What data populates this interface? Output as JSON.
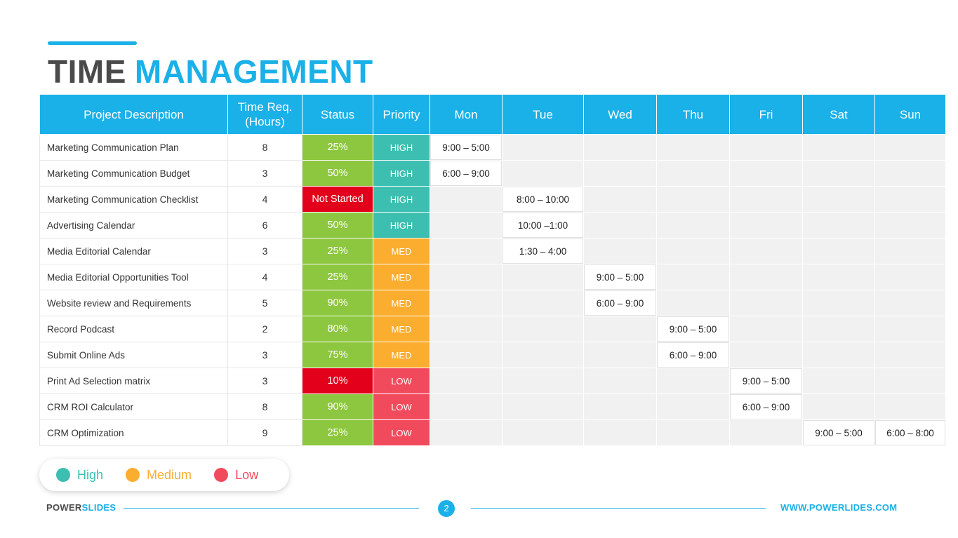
{
  "colors": {
    "accent": "#1ab0e8",
    "status_green": "#8dc63f",
    "status_red": "#e2001a",
    "priority_high": "#3cbfb0",
    "priority_med": "#fbad2f",
    "priority_low": "#f24a5d",
    "legend_high": "#3cbfb0",
    "legend_medium": "#fbad2f",
    "legend_low": "#f24a5d"
  },
  "title": {
    "word1": "TIME",
    "word2": "MANAGEMENT"
  },
  "table": {
    "headers": [
      "Project Description",
      "Time Req.\n(Hours)",
      "Status",
      "Priority",
      "Mon",
      "Tue",
      "Wed",
      "Thu",
      "Fri",
      "Sat",
      "Sun"
    ],
    "rows": [
      {
        "desc": "Marketing Communication Plan",
        "hours": "8",
        "status": "25%",
        "status_color": "green",
        "priority": "HIGH",
        "priority_level": "high",
        "days": [
          "9:00 – 5:00",
          "",
          "",
          "",
          "",
          "",
          ""
        ]
      },
      {
        "desc": "Marketing Communication Budget",
        "hours": "3",
        "status": "50%",
        "status_color": "green",
        "priority": "HIGH",
        "priority_level": "high",
        "days": [
          "6:00 – 9:00",
          "",
          "",
          "",
          "",
          "",
          ""
        ]
      },
      {
        "desc": "Marketing Communication Checklist",
        "hours": "4",
        "status": "Not Started",
        "status_color": "red",
        "priority": "HIGH",
        "priority_level": "high",
        "days": [
          "",
          "8:00 – 10:00",
          "",
          "",
          "",
          "",
          ""
        ]
      },
      {
        "desc": "Advertising Calendar",
        "hours": "6",
        "status": "50%",
        "status_color": "green",
        "priority": "HIGH",
        "priority_level": "high",
        "days": [
          "",
          "10:00 –1:00",
          "",
          "",
          "",
          "",
          ""
        ]
      },
      {
        "desc": "Media Editorial Calendar",
        "hours": "3",
        "status": "25%",
        "status_color": "green",
        "priority": "MED",
        "priority_level": "med",
        "days": [
          "",
          "1:30 – 4:00",
          "",
          "",
          "",
          "",
          ""
        ]
      },
      {
        "desc": "Media Editorial Opportunities Tool",
        "hours": "4",
        "status": "25%",
        "status_color": "green",
        "priority": "MED",
        "priority_level": "med",
        "days": [
          "",
          "",
          "9:00 – 5:00",
          "",
          "",
          "",
          ""
        ]
      },
      {
        "desc": "Website review and Requirements",
        "hours": "5",
        "status": "90%",
        "status_color": "green",
        "priority": "MED",
        "priority_level": "med",
        "days": [
          "",
          "",
          "6:00 – 9:00",
          "",
          "",
          "",
          ""
        ]
      },
      {
        "desc": "Record Podcast",
        "hours": "2",
        "status": "80%",
        "status_color": "green",
        "priority": "MED",
        "priority_level": "med",
        "days": [
          "",
          "",
          "",
          "9:00 – 5:00",
          "",
          "",
          ""
        ]
      },
      {
        "desc": "Submit Online Ads",
        "hours": "3",
        "status": "75%",
        "status_color": "green",
        "priority": "MED",
        "priority_level": "med",
        "days": [
          "",
          "",
          "",
          "6:00 – 9:00",
          "",
          "",
          ""
        ]
      },
      {
        "desc": "Print Ad Selection matrix",
        "hours": "3",
        "status": "10%",
        "status_color": "red",
        "priority": "LOW",
        "priority_level": "low",
        "days": [
          "",
          "",
          "",
          "",
          "9:00 – 5:00",
          "",
          ""
        ]
      },
      {
        "desc": "CRM ROI Calculator",
        "hours": "8",
        "status": "90%",
        "status_color": "green",
        "priority": "LOW",
        "priority_level": "low",
        "days": [
          "",
          "",
          "",
          "",
          "6:00 – 9:00",
          "",
          ""
        ]
      },
      {
        "desc": "CRM Optimization",
        "hours": "9",
        "status": "25%",
        "status_color": "green",
        "priority": "LOW",
        "priority_level": "low",
        "days": [
          "",
          "",
          "",
          "",
          "",
          "9:00 – 5:00",
          "6:00 – 8:00"
        ]
      }
    ]
  },
  "legend": {
    "items": [
      {
        "label": "High",
        "color": "#3cbfb0"
      },
      {
        "label": "Medium",
        "color": "#fbad2f"
      },
      {
        "label": "Low",
        "color": "#f24a5d"
      }
    ]
  },
  "footer": {
    "brand_part1": "POWER",
    "brand_part2": "SLIDES",
    "page_number": "2",
    "url": "WWW.POWERLIDES.COM"
  }
}
